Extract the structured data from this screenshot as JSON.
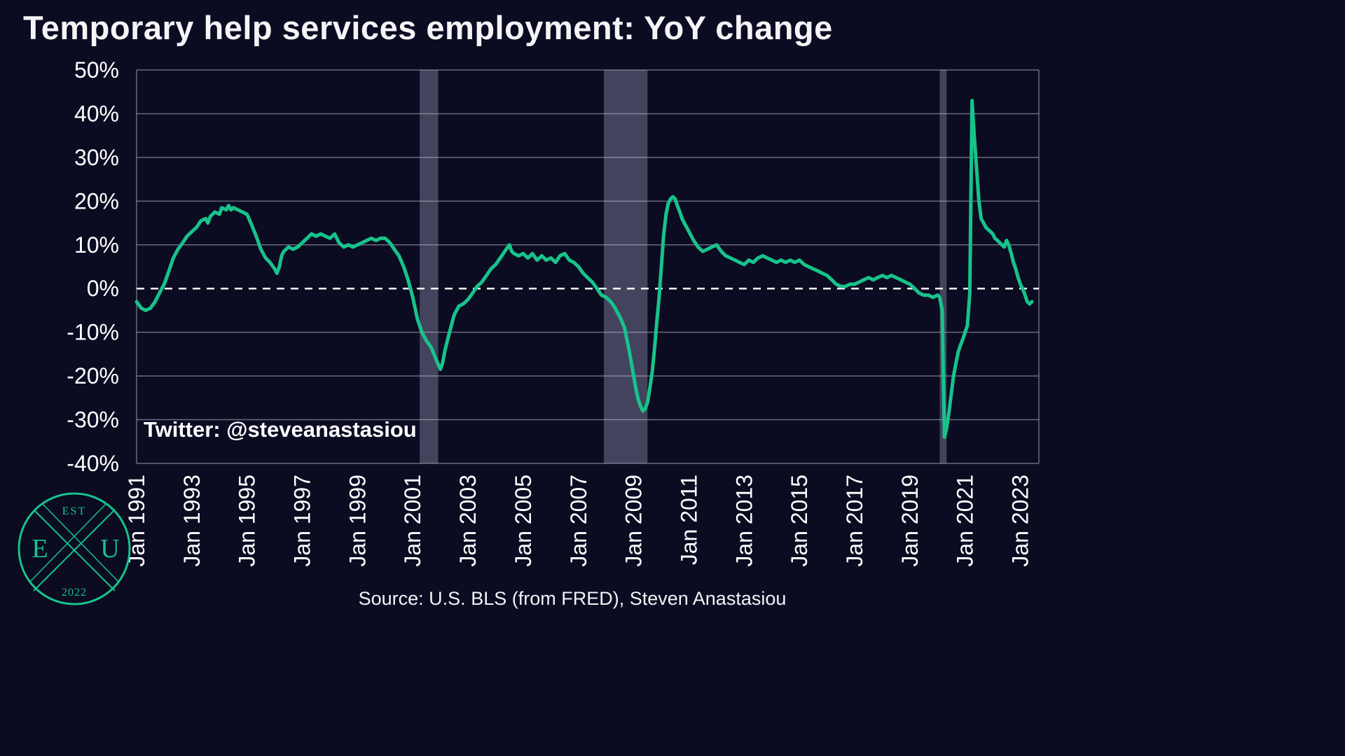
{
  "title": "Temporary help services employment: YoY change",
  "annotation": "Twitter: @steveanastasiou",
  "source": "Source: U.S. BLS (from FRED), Steven Anastasiou",
  "logo": {
    "est": "EST",
    "year": "2022",
    "left_letter": "E",
    "right_letter": "U"
  },
  "colors": {
    "background": "#0b0b22",
    "line": "#17c38b",
    "grid": "#b9b9c9",
    "recession_band": "#73738f",
    "text": "#ffffff",
    "zero_line": "#ffffff",
    "logo": "#17c38b"
  },
  "chart_data": {
    "type": "line",
    "title": "Temporary help services employment: YoY change",
    "xlabel": "",
    "ylabel": "",
    "ylim": [
      -40,
      50
    ],
    "xlim": [
      1991,
      2023.67
    ],
    "grid": "horizontal",
    "legend": "none",
    "zero_line_dashed": true,
    "yticks": [
      50,
      40,
      30,
      20,
      10,
      0,
      -10,
      -20,
      -30,
      -40
    ],
    "ytick_labels": [
      "50%",
      "40%",
      "30%",
      "20%",
      "10%",
      "0%",
      "-10%",
      "-20%",
      "-30%",
      "-40%"
    ],
    "xticks": [
      1991,
      1993,
      1995,
      1997,
      1999,
      2001,
      2003,
      2005,
      2007,
      2009,
      2011,
      2013,
      2015,
      2017,
      2019,
      2021,
      2023
    ],
    "xtick_labels": [
      "Jan 1991",
      "Jan 1993",
      "Jan 1995",
      "Jan 1997",
      "Jan 1999",
      "Jan 2001",
      "Jan 2003",
      "Jan 2005",
      "Jan 2007",
      "Jan 2009",
      "Jan 2011",
      "Jan 2013",
      "Jan 2015",
      "Jan 2017",
      "Jan 2019",
      "Jan 2021",
      "Jan 2023"
    ],
    "recessions": [
      [
        2001.25,
        2001.92
      ],
      [
        2007.92,
        2009.5
      ],
      [
        2020.08,
        2020.33
      ]
    ],
    "series": [
      {
        "name": "Temporary help services employment YoY % change",
        "color": "#17c38b",
        "points": [
          [
            1991.0,
            -3
          ],
          [
            1991.17,
            -4.5
          ],
          [
            1991.33,
            -5
          ],
          [
            1991.5,
            -4.5
          ],
          [
            1991.67,
            -3
          ],
          [
            1991.83,
            -1
          ],
          [
            1992.0,
            1
          ],
          [
            1992.17,
            4
          ],
          [
            1992.33,
            7
          ],
          [
            1992.5,
            9
          ],
          [
            1992.67,
            10.5
          ],
          [
            1992.83,
            12
          ],
          [
            1993.0,
            13
          ],
          [
            1993.17,
            14
          ],
          [
            1993.33,
            15.5
          ],
          [
            1993.5,
            16
          ],
          [
            1993.58,
            15
          ],
          [
            1993.67,
            16.5
          ],
          [
            1993.83,
            17.5
          ],
          [
            1994.0,
            17
          ],
          [
            1994.08,
            18.5
          ],
          [
            1994.25,
            18
          ],
          [
            1994.33,
            19
          ],
          [
            1994.42,
            18
          ],
          [
            1994.5,
            18.5
          ],
          [
            1994.67,
            18
          ],
          [
            1994.83,
            17.5
          ],
          [
            1995.0,
            17
          ],
          [
            1995.17,
            14.5
          ],
          [
            1995.33,
            12
          ],
          [
            1995.5,
            9
          ],
          [
            1995.67,
            7
          ],
          [
            1995.83,
            6
          ],
          [
            1996.0,
            4.5
          ],
          [
            1996.08,
            3.5
          ],
          [
            1996.17,
            5
          ],
          [
            1996.25,
            7.5
          ],
          [
            1996.33,
            8.5
          ],
          [
            1996.5,
            9.5
          ],
          [
            1996.67,
            9
          ],
          [
            1996.83,
            9.5
          ],
          [
            1997.0,
            10.5
          ],
          [
            1997.17,
            11.5
          ],
          [
            1997.33,
            12.5
          ],
          [
            1997.5,
            12
          ],
          [
            1997.67,
            12.5
          ],
          [
            1997.83,
            12
          ],
          [
            1998.0,
            11.5
          ],
          [
            1998.17,
            12.5
          ],
          [
            1998.33,
            10.5
          ],
          [
            1998.5,
            9.5
          ],
          [
            1998.67,
            10
          ],
          [
            1998.83,
            9.5
          ],
          [
            1999.0,
            10
          ],
          [
            1999.17,
            10.5
          ],
          [
            1999.33,
            11
          ],
          [
            1999.5,
            11.5
          ],
          [
            1999.67,
            11
          ],
          [
            1999.83,
            11.5
          ],
          [
            2000.0,
            11.5
          ],
          [
            2000.17,
            10.5
          ],
          [
            2000.33,
            9
          ],
          [
            2000.5,
            7.5
          ],
          [
            2000.67,
            5
          ],
          [
            2000.83,
            2
          ],
          [
            2001.0,
            -2
          ],
          [
            2001.17,
            -7
          ],
          [
            2001.33,
            -10
          ],
          [
            2001.5,
            -12
          ],
          [
            2001.67,
            -13.5
          ],
          [
            2001.83,
            -16
          ],
          [
            2002.0,
            -18.5
          ],
          [
            2002.08,
            -17
          ],
          [
            2002.17,
            -14
          ],
          [
            2002.33,
            -10
          ],
          [
            2002.5,
            -6
          ],
          [
            2002.67,
            -4
          ],
          [
            2002.83,
            -3.5
          ],
          [
            2003.0,
            -2.5
          ],
          [
            2003.17,
            -1
          ],
          [
            2003.33,
            0.5
          ],
          [
            2003.5,
            1.5
          ],
          [
            2003.67,
            3
          ],
          [
            2003.83,
            4.5
          ],
          [
            2004.0,
            5.5
          ],
          [
            2004.17,
            7
          ],
          [
            2004.33,
            8.5
          ],
          [
            2004.5,
            10
          ],
          [
            2004.58,
            8.5
          ],
          [
            2004.67,
            8
          ],
          [
            2004.83,
            7.5
          ],
          [
            2005.0,
            8
          ],
          [
            2005.17,
            7
          ],
          [
            2005.33,
            8
          ],
          [
            2005.5,
            6.5
          ],
          [
            2005.67,
            7.5
          ],
          [
            2005.83,
            6.5
          ],
          [
            2006.0,
            7
          ],
          [
            2006.17,
            6
          ],
          [
            2006.33,
            7.5
          ],
          [
            2006.5,
            8
          ],
          [
            2006.67,
            6.5
          ],
          [
            2006.83,
            6
          ],
          [
            2007.0,
            5
          ],
          [
            2007.17,
            3.5
          ],
          [
            2007.33,
            2.5
          ],
          [
            2007.5,
            1.5
          ],
          [
            2007.67,
            0
          ],
          [
            2007.83,
            -1.5
          ],
          [
            2008.0,
            -2
          ],
          [
            2008.17,
            -3
          ],
          [
            2008.33,
            -4.5
          ],
          [
            2008.5,
            -6.5
          ],
          [
            2008.67,
            -9
          ],
          [
            2008.83,
            -14
          ],
          [
            2009.0,
            -20
          ],
          [
            2009.08,
            -23
          ],
          [
            2009.17,
            -25.5
          ],
          [
            2009.25,
            -27
          ],
          [
            2009.33,
            -28
          ],
          [
            2009.42,
            -27.5
          ],
          [
            2009.5,
            -26
          ],
          [
            2009.58,
            -23
          ],
          [
            2009.67,
            -19
          ],
          [
            2009.75,
            -14
          ],
          [
            2009.83,
            -8
          ],
          [
            2009.92,
            -2
          ],
          [
            2010.0,
            5
          ],
          [
            2010.08,
            12
          ],
          [
            2010.17,
            17
          ],
          [
            2010.25,
            19.5
          ],
          [
            2010.33,
            20.5
          ],
          [
            2010.42,
            21
          ],
          [
            2010.5,
            20.5
          ],
          [
            2010.58,
            19
          ],
          [
            2010.67,
            17.5
          ],
          [
            2010.75,
            16
          ],
          [
            2010.83,
            15
          ],
          [
            2010.92,
            14
          ],
          [
            2011.0,
            13
          ],
          [
            2011.17,
            11
          ],
          [
            2011.33,
            9.5
          ],
          [
            2011.5,
            8.5
          ],
          [
            2011.67,
            9
          ],
          [
            2011.83,
            9.5
          ],
          [
            2012.0,
            10
          ],
          [
            2012.17,
            8.5
          ],
          [
            2012.33,
            7.5
          ],
          [
            2012.5,
            7
          ],
          [
            2012.67,
            6.5
          ],
          [
            2012.83,
            6
          ],
          [
            2013.0,
            5.5
          ],
          [
            2013.17,
            6.5
          ],
          [
            2013.33,
            6
          ],
          [
            2013.5,
            7
          ],
          [
            2013.67,
            7.5
          ],
          [
            2013.83,
            7
          ],
          [
            2014.0,
            6.5
          ],
          [
            2014.17,
            6
          ],
          [
            2014.33,
            6.5
          ],
          [
            2014.5,
            6
          ],
          [
            2014.67,
            6.5
          ],
          [
            2014.83,
            6
          ],
          [
            2015.0,
            6.5
          ],
          [
            2015.17,
            5.5
          ],
          [
            2015.33,
            5
          ],
          [
            2015.5,
            4.5
          ],
          [
            2015.67,
            4
          ],
          [
            2015.83,
            3.5
          ],
          [
            2016.0,
            3
          ],
          [
            2016.17,
            2
          ],
          [
            2016.33,
            1
          ],
          [
            2016.5,
            0.5
          ],
          [
            2016.67,
            0.5
          ],
          [
            2016.83,
            1
          ],
          [
            2017.0,
            1
          ],
          [
            2017.17,
            1.5
          ],
          [
            2017.33,
            2
          ],
          [
            2017.5,
            2.5
          ],
          [
            2017.67,
            2
          ],
          [
            2017.83,
            2.5
          ],
          [
            2018.0,
            3
          ],
          [
            2018.17,
            2.5
          ],
          [
            2018.33,
            3
          ],
          [
            2018.5,
            2.5
          ],
          [
            2018.67,
            2
          ],
          [
            2018.83,
            1.5
          ],
          [
            2019.0,
            1
          ],
          [
            2019.17,
            0
          ],
          [
            2019.33,
            -1
          ],
          [
            2019.5,
            -1.5
          ],
          [
            2019.67,
            -1.5
          ],
          [
            2019.83,
            -2
          ],
          [
            2020.0,
            -1.5
          ],
          [
            2020.08,
            -2
          ],
          [
            2020.17,
            -5
          ],
          [
            2020.25,
            -34
          ],
          [
            2020.33,
            -32
          ],
          [
            2020.42,
            -28
          ],
          [
            2020.5,
            -24
          ],
          [
            2020.58,
            -20
          ],
          [
            2020.67,
            -17
          ],
          [
            2020.75,
            -14.5
          ],
          [
            2020.83,
            -13
          ],
          [
            2020.92,
            -11.5
          ],
          [
            2021.0,
            -10
          ],
          [
            2021.08,
            -8.5
          ],
          [
            2021.17,
            -1
          ],
          [
            2021.25,
            43
          ],
          [
            2021.33,
            35
          ],
          [
            2021.42,
            27
          ],
          [
            2021.5,
            20
          ],
          [
            2021.58,
            16
          ],
          [
            2021.67,
            15
          ],
          [
            2021.75,
            14
          ],
          [
            2021.83,
            13.5
          ],
          [
            2021.92,
            13
          ],
          [
            2022.0,
            12.5
          ],
          [
            2022.08,
            11.5
          ],
          [
            2022.17,
            11
          ],
          [
            2022.33,
            10
          ],
          [
            2022.42,
            9.5
          ],
          [
            2022.5,
            11
          ],
          [
            2022.58,
            10
          ],
          [
            2022.67,
            8
          ],
          [
            2022.75,
            6
          ],
          [
            2022.83,
            4.5
          ],
          [
            2022.92,
            2.5
          ],
          [
            2023.0,
            1
          ],
          [
            2023.08,
            0
          ],
          [
            2023.17,
            -1.5
          ],
          [
            2023.25,
            -3
          ],
          [
            2023.33,
            -3.5
          ],
          [
            2023.42,
            -3
          ]
        ]
      }
    ]
  }
}
